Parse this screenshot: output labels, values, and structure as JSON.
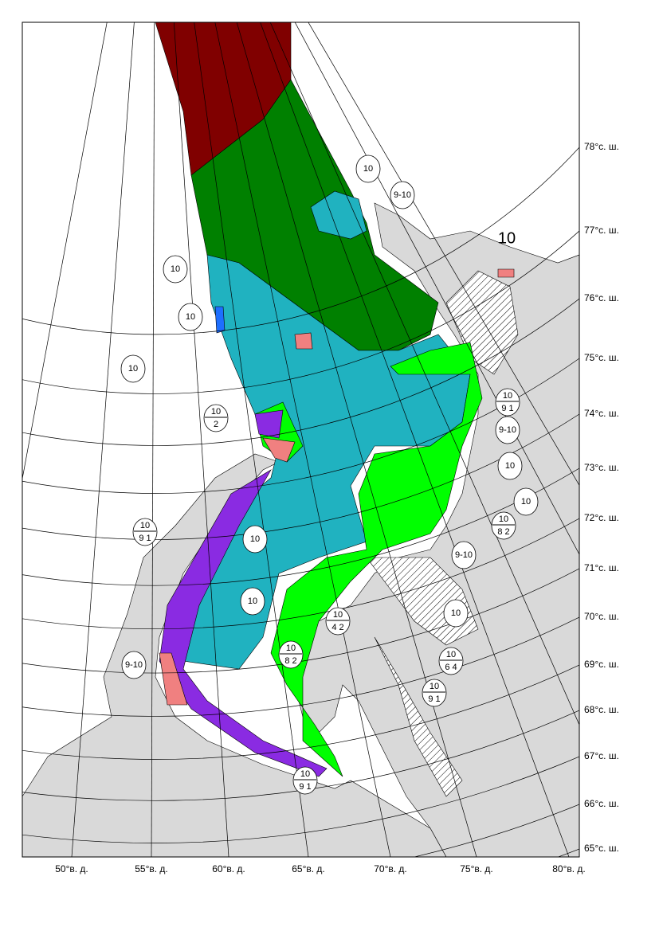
{
  "map": {
    "latitude_labels": [
      "78°с. ш.",
      "77°с. ш.",
      "76°с. ш.",
      "75°с. ш.",
      "74°с. ш.",
      "73°с. ш.",
      "72°с. ш.",
      "71°с. ш.",
      "70°с. ш.",
      "69°с. ш.",
      "68°с. ш.",
      "67°с. ш.",
      "66°с. ш.",
      "65°с. ш."
    ],
    "longitude_labels": [
      "50°в. д.",
      "55°в. д.",
      "60°в. д.",
      "65°в. д.",
      "70°в. д.",
      "75°в. д.",
      "80°в. д."
    ],
    "ice_codes": [
      {
        "total": "10"
      },
      {
        "total": "9-10"
      },
      {
        "total": "10"
      },
      {
        "total": "10",
        "partial": "9 1"
      },
      {
        "total": "9-10"
      },
      {
        "total": "10"
      },
      {
        "total": "10"
      },
      {
        "total": "10",
        "partial": "8 2"
      },
      {
        "total": "9-10"
      },
      {
        "total": "10"
      },
      {
        "total": "10",
        "partial": "4 2"
      },
      {
        "total": "10",
        "partial": "8 2"
      },
      {
        "total": "10",
        "partial": "6 4"
      },
      {
        "total": "9-10"
      },
      {
        "total": "10",
        "partial": "9 1"
      },
      {
        "total": "10",
        "partial": "9 1"
      },
      {
        "total": "10",
        "partial": "9 1"
      },
      {
        "total": "10",
        "partial": "2"
      },
      {
        "total": "10"
      },
      {
        "total": "10"
      },
      {
        "total": "10"
      },
      {
        "total": "10"
      },
      {
        "total": "10"
      }
    ]
  }
}
